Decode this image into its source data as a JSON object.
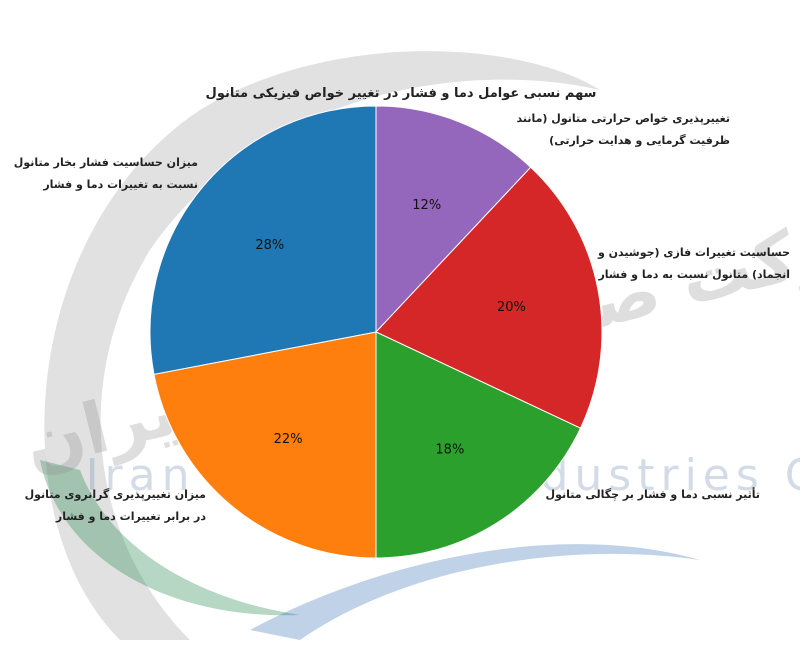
{
  "chart_data": {
    "type": "pie",
    "title": "سهم نسبی عوامل دما و فشار در تغییر خواص فیزیکی متانول",
    "categories": [
      "تغییرپذیری خواص حرارتی متانول (مانند ظرفیت گرمایی و هدایت حرارتی)",
      "حساسیت تغییرات فازی (جوشیدن و انجماد) متانول نسبت به دما و فشار",
      "تأثیر نسبی دما و فشار بر چگالی متانول",
      "میزان تغییرپذیری گرانروی متانول در برابر تغییرات دما و فشار",
      "میزان حساسیت فشار بخار متانول نسبت به تغییرات دما و فشار"
    ],
    "label_lines": [
      [
        "تغییرپذیری خواص حرارتی متانول (مانند",
        "ظرفیت گرمایی و هدایت حرارتی)"
      ],
      [
        "حساسیت تغییرات فازی (جوشیدن و",
        "انجماد) متانول نسبت به دما و فشار"
      ],
      [
        "تأثیر نسبی دما و فشار بر چگالی متانول"
      ],
      [
        "میزان تغییرپذیری گرانروی متانول",
        "در برابر تغییرات دما و فشار"
      ],
      [
        "میزان حساسیت فشار بخار متانول",
        "نسبت به تغییرات دما و فشار"
      ]
    ],
    "values": [
      12,
      20,
      18,
      22,
      28
    ],
    "percent_labels": [
      "12%",
      "20%",
      "18%",
      "22%",
      "28%"
    ],
    "colors": [
      "#9467bd",
      "#d62728",
      "#2ca02c",
      "#ff7f0e",
      "#1f77b4"
    ],
    "start": "top",
    "direction": "clockwise"
  },
  "watermark": {
    "persian_text": "شرکت صنایع متانول ایران",
    "english_text": "Iran Methanol Industries Co"
  }
}
